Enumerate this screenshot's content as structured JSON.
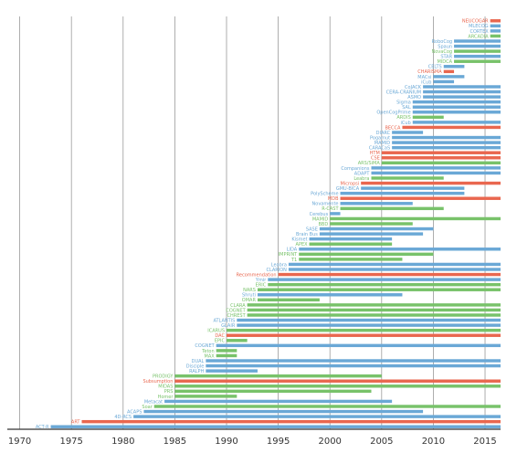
{
  "colors": {
    "blue": "#6aa8d6",
    "green": "#78c26a",
    "red": "#e9674f",
    "grid": "#9a9a9a",
    "axis": "#333333"
  },
  "chart_data": {
    "type": "bar",
    "orientation": "horizontal",
    "title": "",
    "xlabel": "",
    "ylabel": "",
    "xlim": [
      1968.8,
      2016.5
    ],
    "xticks": [
      1970,
      1975,
      1980,
      1985,
      1990,
      1995,
      2000,
      2005,
      2010,
      2015
    ],
    "grid": "vertical",
    "legend": "none",
    "bars": [
      {
        "name": "NEUCOGAR",
        "start": 2015.5,
        "end": 2016.5,
        "color": "red"
      },
      {
        "name": "MLECOG",
        "start": 2015.5,
        "end": 2016.5,
        "color": "blue"
      },
      {
        "name": "CORTEX",
        "start": 2015.5,
        "end": 2016.5,
        "color": "blue"
      },
      {
        "name": "ARCADIA",
        "start": 2015.5,
        "end": 2016.5,
        "color": "green"
      },
      {
        "name": "RoboCog",
        "start": 2012,
        "end": 2016.5,
        "color": "blue"
      },
      {
        "name": "Spaun",
        "start": 2012,
        "end": 2016.5,
        "color": "blue"
      },
      {
        "name": "NovaCog",
        "start": 2012,
        "end": 2016.5,
        "color": "green"
      },
      {
        "name": "STAR",
        "start": 2012,
        "end": 2016.5,
        "color": "blue"
      },
      {
        "name": "MIDCA",
        "start": 2012,
        "end": 2016.5,
        "color": "green"
      },
      {
        "name": "CELTS",
        "start": 2011,
        "end": 2013,
        "color": "blue"
      },
      {
        "name": "CHARISMA",
        "start": 2011,
        "end": 2012,
        "color": "red"
      },
      {
        "name": "MACsi",
        "start": 2010,
        "end": 2013,
        "color": "blue"
      },
      {
        "name": "iCub",
        "start": 2010,
        "end": 2012,
        "color": "blue"
      },
      {
        "name": "CoJACK",
        "start": 2009,
        "end": 2016.5,
        "color": "blue"
      },
      {
        "name": "CERA-CRANIUM",
        "start": 2009,
        "end": 2016.5,
        "color": "blue"
      },
      {
        "name": "ASMO",
        "start": 2009,
        "end": 2016.5,
        "color": "blue"
      },
      {
        "name": "Sigma",
        "start": 2008,
        "end": 2016.5,
        "color": "blue"
      },
      {
        "name": "SAL",
        "start": 2008,
        "end": 2016.5,
        "color": "blue"
      },
      {
        "name": "OpenCogPrime",
        "start": 2008,
        "end": 2016.5,
        "color": "blue"
      },
      {
        "name": "ARDIS",
        "start": 2008,
        "end": 2011,
        "color": "green"
      },
      {
        "name": "iCub",
        "start": 2008,
        "end": 2016.5,
        "color": "blue"
      },
      {
        "name": "BECCA",
        "start": 2007,
        "end": 2016.5,
        "color": "red"
      },
      {
        "name": "DIARC",
        "start": 2006,
        "end": 2009,
        "color": "blue"
      },
      {
        "name": "Pogamut",
        "start": 2006,
        "end": 2016.5,
        "color": "blue"
      },
      {
        "name": "MAMID",
        "start": 2006,
        "end": 2016.5,
        "color": "blue"
      },
      {
        "name": "CARACaS",
        "start": 2006,
        "end": 2016.5,
        "color": "blue"
      },
      {
        "name": "HTM",
        "start": 2005,
        "end": 2016.5,
        "color": "red"
      },
      {
        "name": "CSE",
        "start": 2005,
        "end": 2016.5,
        "color": "red"
      },
      {
        "name": "ARS/SiMA",
        "start": 2005,
        "end": 2016.5,
        "color": "green"
      },
      {
        "name": "Companions",
        "start": 2004,
        "end": 2016.5,
        "color": "blue"
      },
      {
        "name": "ADAPT",
        "start": 2004,
        "end": 2016.5,
        "color": "blue"
      },
      {
        "name": "Leabra",
        "start": 2004,
        "end": 2011,
        "color": "green"
      },
      {
        "name": "Micropsi",
        "start": 2003,
        "end": 2016.5,
        "color": "red"
      },
      {
        "name": "GMU-BICA",
        "start": 2003,
        "end": 2013,
        "color": "blue"
      },
      {
        "name": "PolyScheme",
        "start": 2001,
        "end": 2013,
        "color": "blue"
      },
      {
        "name": "MDB",
        "start": 2001,
        "end": 2016.5,
        "color": "red"
      },
      {
        "name": "Novamente",
        "start": 2001,
        "end": 2008,
        "color": "blue"
      },
      {
        "name": "R-CAST",
        "start": 2001,
        "end": 2011,
        "color": "green"
      },
      {
        "name": "Cerebus",
        "start": 2000,
        "end": 2001,
        "color": "blue"
      },
      {
        "name": "MAMID",
        "start": 2000,
        "end": 2016.5,
        "color": "green"
      },
      {
        "name": "BBD",
        "start": 2000,
        "end": 2008,
        "color": "green"
      },
      {
        "name": "SASE",
        "start": 1999,
        "end": 2010,
        "color": "blue"
      },
      {
        "name": "Brain Bus",
        "start": 1999,
        "end": 2009,
        "color": "blue"
      },
      {
        "name": "Kismet",
        "start": 1998,
        "end": 2006,
        "color": "blue"
      },
      {
        "name": "APEX",
        "start": 1998,
        "end": 2006,
        "color": "green"
      },
      {
        "name": "LIDA",
        "start": 1997,
        "end": 2016.5,
        "color": "blue"
      },
      {
        "name": "IMPRINT",
        "start": 1997,
        "end": 2010,
        "color": "green"
      },
      {
        "name": "T1",
        "start": 1997,
        "end": 2007,
        "color": "green"
      },
      {
        "name": "Leabra",
        "start": 1996,
        "end": 2016.5,
        "color": "blue"
      },
      {
        "name": "CLARION",
        "start": 1996,
        "end": 2016.5,
        "color": "blue"
      },
      {
        "name": "Recommendation",
        "start": 1995,
        "end": 2016.5,
        "color": "red"
      },
      {
        "name": "Ymir",
        "start": 1994,
        "end": 2016.5,
        "color": "blue"
      },
      {
        "name": "ERIC",
        "start": 1994,
        "end": 2016.5,
        "color": "green"
      },
      {
        "name": "NARS",
        "start": 1993,
        "end": 2016.5,
        "color": "green"
      },
      {
        "name": "Shruti",
        "start": 1993,
        "end": 2007,
        "color": "blue"
      },
      {
        "name": "OMAR",
        "start": 1993,
        "end": 1999,
        "color": "green"
      },
      {
        "name": "CLARA",
        "start": 1992,
        "end": 2016.5,
        "color": "green"
      },
      {
        "name": "COGNET",
        "start": 1992,
        "end": 2016.5,
        "color": "green"
      },
      {
        "name": "CHREST",
        "start": 1992,
        "end": 2016.5,
        "color": "green"
      },
      {
        "name": "ATLANTIS",
        "start": 1991,
        "end": 2016.5,
        "color": "blue"
      },
      {
        "name": "GLAIR",
        "start": 1991,
        "end": 2016.5,
        "color": "blue"
      },
      {
        "name": "ICARUS",
        "start": 1990,
        "end": 2016.5,
        "color": "green"
      },
      {
        "name": "DAC",
        "start": 1990,
        "end": 2016.5,
        "color": "red"
      },
      {
        "name": "EPIC",
        "start": 1990,
        "end": 1992,
        "color": "green"
      },
      {
        "name": "COGNET",
        "start": 1989,
        "end": 2016.5,
        "color": "blue"
      },
      {
        "name": "Teton",
        "start": 1989,
        "end": 1991,
        "color": "green"
      },
      {
        "name": "MAX",
        "start": 1989,
        "end": 1991,
        "color": "green"
      },
      {
        "name": "DUAL",
        "start": 1988,
        "end": 2016.5,
        "color": "blue"
      },
      {
        "name": "Disciple",
        "start": 1988,
        "end": 2016.5,
        "color": "blue"
      },
      {
        "name": "RALPH",
        "start": 1988,
        "end": 1993,
        "color": "blue"
      },
      {
        "name": "PRODIGY",
        "start": 1985,
        "end": 2005,
        "color": "green"
      },
      {
        "name": "Subsumption",
        "start": 1985,
        "end": 2016.5,
        "color": "red"
      },
      {
        "name": "MIDAS",
        "start": 1985,
        "end": 2016.5,
        "color": "green"
      },
      {
        "name": "PRS",
        "start": 1985,
        "end": 2004,
        "color": "green"
      },
      {
        "name": "Homer",
        "start": 1985,
        "end": 1991,
        "color": "green"
      },
      {
        "name": "Metacat",
        "start": 1984,
        "end": 2006,
        "color": "blue"
      },
      {
        "name": "Soar",
        "start": 1983,
        "end": 2016.5,
        "color": "green"
      },
      {
        "name": "ACAPS",
        "start": 1982,
        "end": 2009,
        "color": "blue"
      },
      {
        "name": "4D-RCS",
        "start": 1981,
        "end": 2016.5,
        "color": "blue"
      },
      {
        "name": "ART",
        "start": 1976,
        "end": 2016.5,
        "color": "red"
      },
      {
        "name": "ACT-R",
        "start": 1973,
        "end": 2016.5,
        "color": "blue"
      }
    ]
  }
}
